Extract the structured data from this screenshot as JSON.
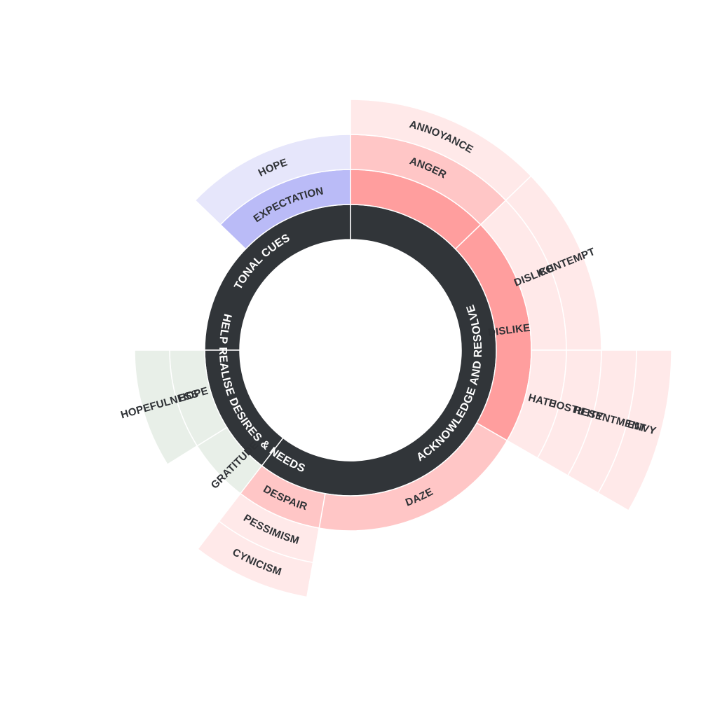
{
  "diagram": {
    "type": "sunburst",
    "palette": {
      "ring1": "#313539",
      "ring1_text": "#ffffff",
      "text": "#2e3135",
      "background": "#ffffff"
    },
    "groups": [
      {
        "label": "TONAL CUES",
        "children": [
          {
            "label": "EXPECTATION",
            "color": "#babbf7",
            "children": [
              {
                "label": "HOPE",
                "color": "#e6e6fb"
              }
            ]
          }
        ]
      },
      {
        "label": "ACKNOWLEDGE AND RESOLVE",
        "children": [
          {
            "label": "",
            "color": "#ff9e9e",
            "children": [
              {
                "label": "ANGER",
                "color": "#ffc6c6",
                "children": [
                  {
                    "label": "ANNOYANCE",
                    "color": "#ffe9e9"
                  }
                ]
              }
            ]
          },
          {
            "label": "DISLIKE",
            "color": "#ff9e9e",
            "children": [
              {
                "label": "DISLIKE",
                "color": "#ffe9e9",
                "children": [
                  {
                    "label": "CONTEMPT",
                    "color": "#ffe9e9"
                  }
                ]
              },
              {
                "label": "HATE",
                "color": "#ffe9e9",
                "children": [
                  {
                    "label": "HOSTILITY",
                    "color": "#ffe9e9",
                    "children": [
                      {
                        "label": "RESENTMENT",
                        "color": "#ffe9e9"
                      },
                      {
                        "label": "ENVY",
                        "color": "#ffe9e9"
                      }
                    ]
                  }
                ]
              }
            ]
          },
          {
            "label": "DAZE",
            "color": "#ffc6c6"
          },
          {
            "label": "DESPAIR",
            "color": "#ffc6c6",
            "children": [
              {
                "label": "PESSIMISM",
                "color": "#ffe9e9",
                "children": [
                  {
                    "label": "CYNICISM",
                    "color": "#ffe9e9"
                  }
                ]
              }
            ]
          }
        ]
      },
      {
        "label": "HELP REALISE DESIRES & NEEDS",
        "children": [
          {
            "label": "GRATITUDE",
            "color": "#e8efe8"
          },
          {
            "label": "HOPE",
            "color": "#e8efe8",
            "children": [
              {
                "label": "HOPEFULNESS",
                "color": "#e8efe8"
              }
            ]
          }
        ]
      }
    ]
  }
}
